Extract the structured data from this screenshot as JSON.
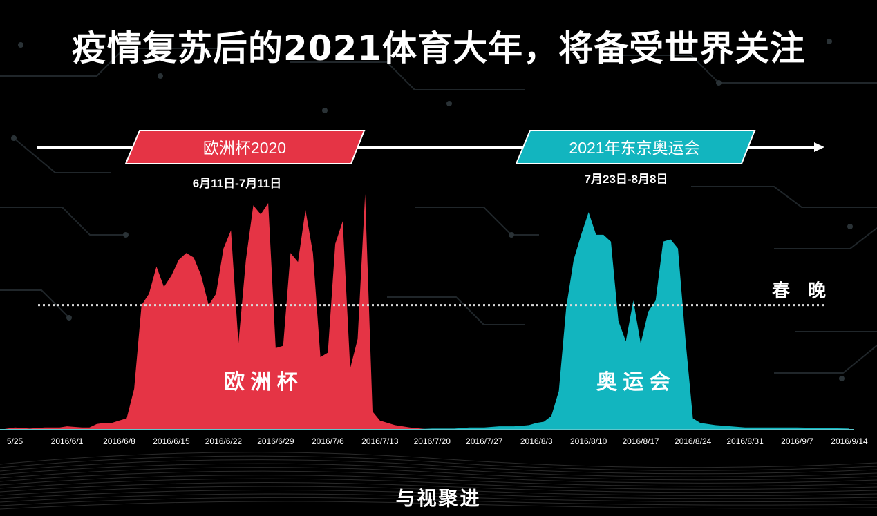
{
  "title": "疫情复苏后的2021体育大年，将备受世界关注",
  "footer_brand": "与视聚进",
  "colors": {
    "background": "#000000",
    "euro": "#e53445",
    "olympics": "#12b5bf",
    "text": "#ffffff",
    "baseline_line": "#cfcfcf"
  },
  "timeline": {
    "events": [
      {
        "label": "欧洲杯2020",
        "dates": "6月11日-7月11日",
        "color": "#e53445"
      },
      {
        "label": "2021年东京奥运会",
        "dates": "7月23日-8月8日",
        "color": "#12b5bf"
      }
    ]
  },
  "chart_data": {
    "type": "area",
    "x_tick_labels": [
      "5/25",
      "2016/6/1",
      "2016/6/8",
      "2016/6/15",
      "2016/6/22",
      "2016/6/29",
      "2016/7/6",
      "2016/7/13",
      "2016/7/20",
      "2016/7/27",
      "2016/8/3",
      "2016/8/10",
      "2016/8/17",
      "2016/8/24",
      "2016/8/31",
      "2016/9/7",
      "2016/9/14"
    ],
    "x_start": "2016-05-23",
    "x_end": "2016-09-14",
    "y_range": [
      0,
      100
    ],
    "grid": false,
    "reference_line": {
      "label": "春　晚",
      "value": 55
    },
    "series": [
      {
        "name": "欧洲杯",
        "color": "#e53445",
        "points": [
          [
            "2016-05-23",
            0
          ],
          [
            "2016-05-25",
            1
          ],
          [
            "2016-05-27",
            0.5
          ],
          [
            "2016-05-29",
            1
          ],
          [
            "2016-05-31",
            1
          ],
          [
            "2016-06-01",
            1.5
          ],
          [
            "2016-06-03",
            1
          ],
          [
            "2016-06-04",
            1
          ],
          [
            "2016-06-05",
            2.5
          ],
          [
            "2016-06-06",
            3
          ],
          [
            "2016-06-07",
            3
          ],
          [
            "2016-06-08",
            4
          ],
          [
            "2016-06-09",
            5
          ],
          [
            "2016-06-10",
            18
          ],
          [
            "2016-06-11",
            55
          ],
          [
            "2016-06-12",
            60
          ],
          [
            "2016-06-13",
            72
          ],
          [
            "2016-06-14",
            63
          ],
          [
            "2016-06-15",
            68
          ],
          [
            "2016-06-16",
            75
          ],
          [
            "2016-06-17",
            78
          ],
          [
            "2016-06-18",
            76
          ],
          [
            "2016-06-19",
            68
          ],
          [
            "2016-06-20",
            55
          ],
          [
            "2016-06-21",
            60
          ],
          [
            "2016-06-22",
            80
          ],
          [
            "2016-06-23",
            88
          ],
          [
            "2016-06-24",
            38
          ],
          [
            "2016-06-25",
            75
          ],
          [
            "2016-06-26",
            99
          ],
          [
            "2016-06-27",
            95
          ],
          [
            "2016-06-28",
            100
          ],
          [
            "2016-06-29",
            36
          ],
          [
            "2016-06-30",
            37
          ],
          [
            "2016-07-01",
            78
          ],
          [
            "2016-07-02",
            74
          ],
          [
            "2016-07-03",
            97
          ],
          [
            "2016-07-04",
            78
          ],
          [
            "2016-07-05",
            32
          ],
          [
            "2016-07-06",
            34
          ],
          [
            "2016-07-07",
            82
          ],
          [
            "2016-07-08",
            92
          ],
          [
            "2016-07-09",
            27
          ],
          [
            "2016-07-10",
            40
          ],
          [
            "2016-07-11",
            104
          ],
          [
            "2016-07-12",
            8
          ],
          [
            "2016-07-13",
            4
          ],
          [
            "2016-07-15",
            2
          ],
          [
            "2016-07-17",
            1
          ],
          [
            "2016-07-20",
            0
          ]
        ]
      },
      {
        "name": "奥运会",
        "color": "#12b5bf",
        "points": [
          [
            "2016-07-16",
            0
          ],
          [
            "2016-07-20",
            0.5
          ],
          [
            "2016-07-23",
            0.5
          ],
          [
            "2016-07-25",
            1
          ],
          [
            "2016-07-27",
            1
          ],
          [
            "2016-07-29",
            1.5
          ],
          [
            "2016-07-31",
            1.5
          ],
          [
            "2016-08-02",
            2
          ],
          [
            "2016-08-03",
            3
          ],
          [
            "2016-08-04",
            3.5
          ],
          [
            "2016-08-05",
            6
          ],
          [
            "2016-08-06",
            17
          ],
          [
            "2016-08-07",
            54
          ],
          [
            "2016-08-08",
            75
          ],
          [
            "2016-08-09",
            86
          ],
          [
            "2016-08-10",
            96
          ],
          [
            "2016-08-11",
            86
          ],
          [
            "2016-08-12",
            86
          ],
          [
            "2016-08-13",
            83
          ],
          [
            "2016-08-14",
            48
          ],
          [
            "2016-08-15",
            39
          ],
          [
            "2016-08-16",
            57
          ],
          [
            "2016-08-17",
            38
          ],
          [
            "2016-08-18",
            52
          ],
          [
            "2016-08-19",
            57
          ],
          [
            "2016-08-20",
            83
          ],
          [
            "2016-08-21",
            84
          ],
          [
            "2016-08-22",
            80
          ],
          [
            "2016-08-23",
            40
          ],
          [
            "2016-08-24",
            5
          ],
          [
            "2016-08-25",
            3
          ],
          [
            "2016-08-27",
            2
          ],
          [
            "2016-08-31",
            1
          ],
          [
            "2016-09-07",
            1
          ],
          [
            "2016-09-14",
            0.5
          ]
        ]
      }
    ],
    "annotations": [
      {
        "text": "欧 洲 杯",
        "x": "2016-06-27",
        "y": 18
      },
      {
        "text": "奥 运 会",
        "x": "2016-08-16",
        "y": 18
      }
    ]
  }
}
